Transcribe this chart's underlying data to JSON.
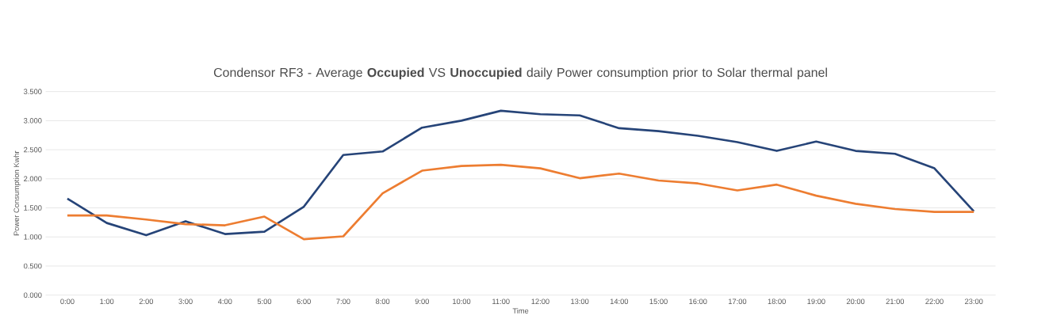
{
  "chart_data": {
    "type": "line",
    "title": "Condensor RF3 - Average **Occupied** VS **Unoccupied** daily Power consumption prior to Solar thermal panel",
    "xlabel": "Time",
    "ylabel": "Power Consumption Kwhr",
    "categories": [
      "0:00",
      "1:00",
      "2:00",
      "3:00",
      "4:00",
      "5:00",
      "6:00",
      "7:00",
      "8:00",
      "9:00",
      "10:00",
      "11:00",
      "12:00",
      "13:00",
      "14:00",
      "15:00",
      "16:00",
      "17:00",
      "18:00",
      "19:00",
      "20:00",
      "21:00",
      "22:00",
      "23:00"
    ],
    "series": [
      {
        "color": "#264478",
        "values": [
          1.66,
          1.24,
          1.03,
          1.27,
          1.05,
          1.09,
          1.52,
          2.41,
          2.47,
          2.88,
          3.0,
          3.17,
          3.11,
          3.09,
          2.87,
          2.82,
          2.74,
          2.63,
          2.48,
          2.64,
          2.48,
          2.43,
          2.18,
          1.44
        ]
      },
      {
        "color": "#ed7d31",
        "values": [
          1.37,
          1.37,
          1.3,
          1.22,
          1.2,
          1.35,
          0.96,
          1.01,
          1.75,
          2.14,
          2.22,
          2.24,
          2.18,
          2.01,
          2.09,
          1.97,
          1.92,
          1.8,
          1.9,
          1.71,
          1.57,
          1.48,
          1.43,
          1.43
        ]
      }
    ],
    "ylim": [
      0,
      3.5
    ],
    "yticks": [
      {
        "value": 0,
        "label": "0.000"
      },
      {
        "value": 0.5,
        "label": "0.500"
      },
      {
        "value": 1,
        "label": "1.000"
      },
      {
        "value": 1.5,
        "label": "1.500"
      },
      {
        "value": 2,
        "label": "2.000"
      },
      {
        "value": 2.5,
        "label": "2.500"
      },
      {
        "value": 3,
        "label": "3.000"
      },
      {
        "value": 3.5,
        "label": "3.500"
      }
    ],
    "grid": "y",
    "legend": false,
    "marker": "none",
    "line_style": "solid"
  }
}
